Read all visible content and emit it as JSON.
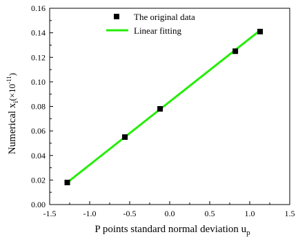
{
  "chart_data": {
    "type": "scatter",
    "xlabel_main": "P points standard normal deviation u",
    "xlabel_sub": "p",
    "ylabel_main": "Numerical x",
    "ylabel_sub": "i",
    "ylabel_paren_open": "(×10",
    "ylabel_sup": "-11",
    "ylabel_paren_close": ")",
    "xlim": [
      -1.5,
      1.5
    ],
    "ylim": [
      0.0,
      0.16
    ],
    "x_ticks": [
      -1.5,
      -1.0,
      -0.5,
      0.0,
      0.5,
      1.0,
      1.5
    ],
    "x_tick_labels": [
      "-1.5",
      "-1.0",
      "-0.5",
      "0.0",
      "0.5",
      "1.0",
      "1.5"
    ],
    "y_ticks": [
      0.0,
      0.02,
      0.04,
      0.06,
      0.08,
      0.1,
      0.12,
      0.14,
      0.16
    ],
    "y_tick_labels": [
      "0.00",
      "0.02",
      "0.04",
      "0.06",
      "0.08",
      "0.10",
      "0.12",
      "0.14",
      "0.16"
    ],
    "grid": false,
    "legend_position": "top-center",
    "series": [
      {
        "name": "The original data",
        "kind": "scatter",
        "marker": "square",
        "color": "#000000",
        "x": [
          -1.28,
          -0.56,
          -0.12,
          0.82,
          1.13
        ],
        "y": [
          0.018,
          0.055,
          0.078,
          0.125,
          0.141
        ]
      },
      {
        "name": "Linear fitting",
        "kind": "line",
        "color": "#22ee00",
        "x": [
          -1.28,
          1.13
        ],
        "y": [
          0.018,
          0.142
        ]
      }
    ]
  }
}
